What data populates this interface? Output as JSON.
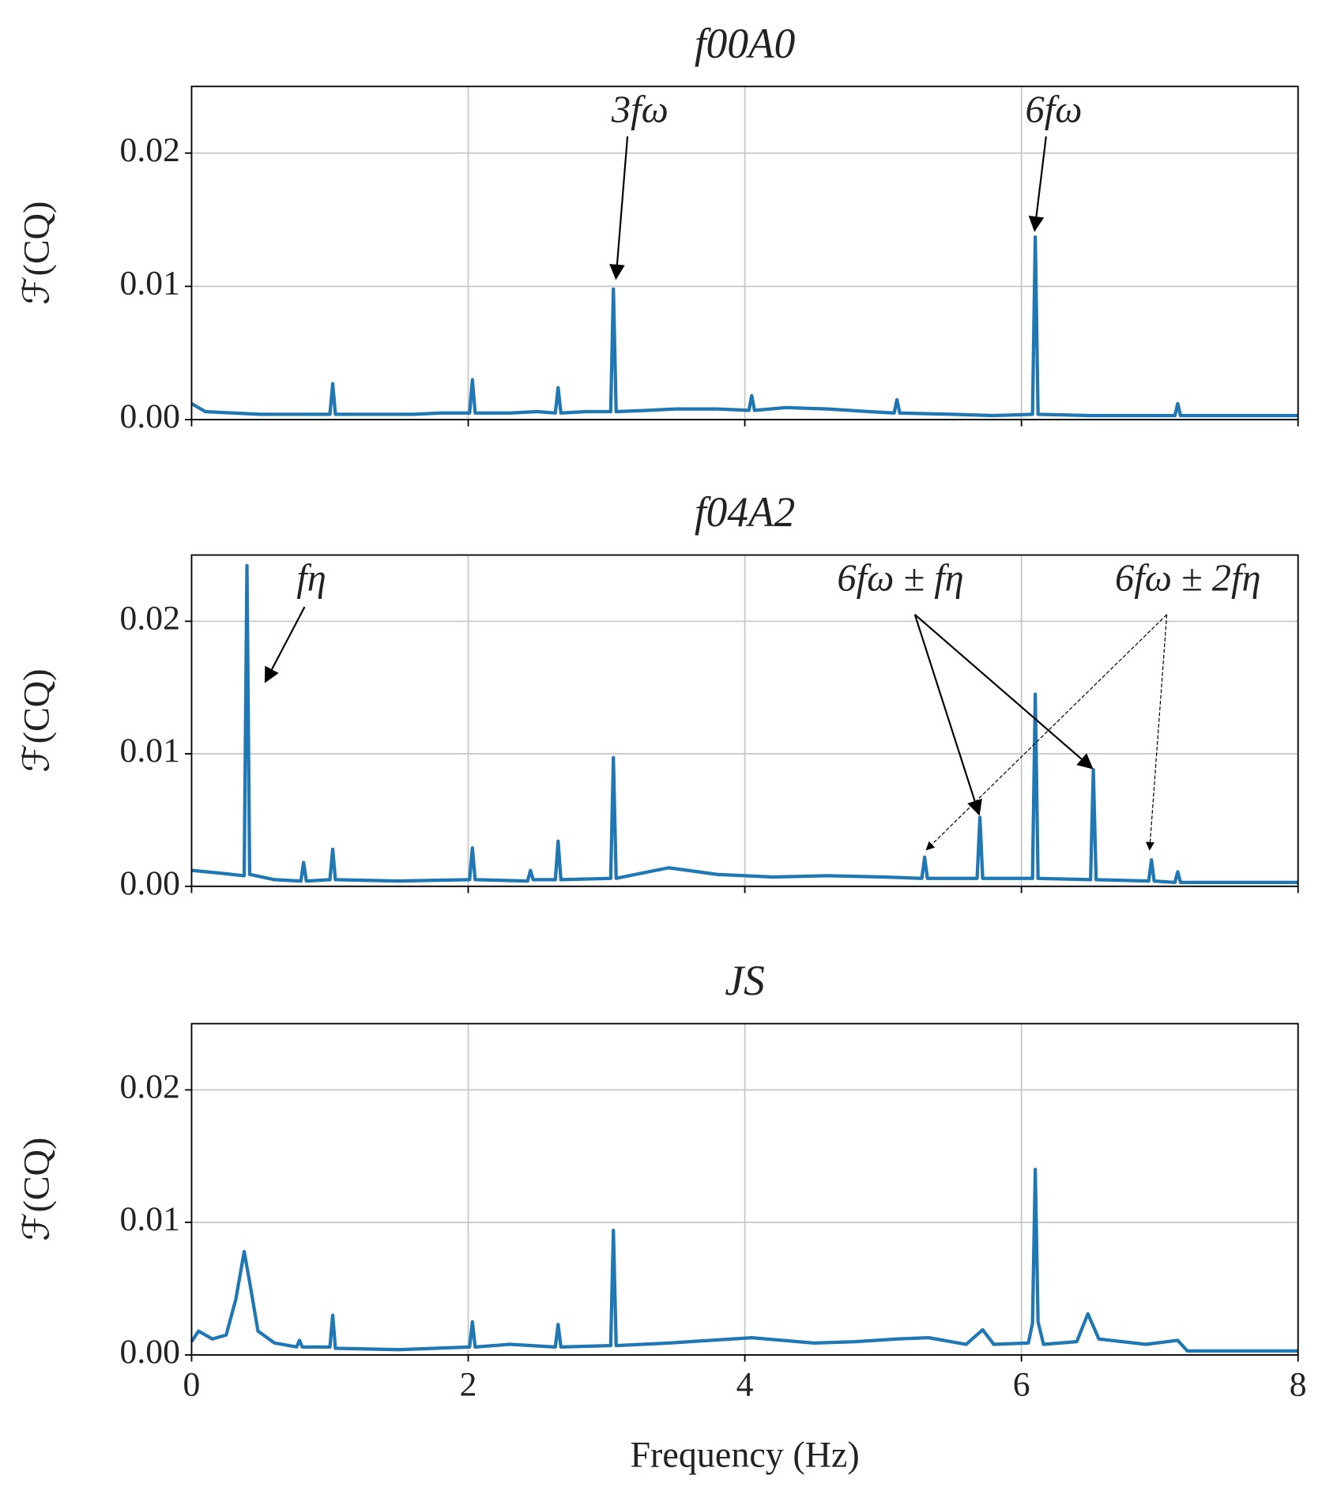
{
  "chart_data": [
    {
      "type": "line",
      "title": "f00A0",
      "ylabel": "ℱ(CQ)",
      "color": "#1f77b4",
      "grid": true,
      "xlim": [
        0,
        8
      ],
      "ylim": [
        0,
        0.025
      ],
      "yticks": [
        {
          "value": 0,
          "label": "0.00"
        },
        {
          "value": 0.01,
          "label": "0.01"
        },
        {
          "value": 0.02,
          "label": "0.02"
        }
      ],
      "annotations": [
        "3fω",
        "6fω"
      ],
      "x": [
        0,
        0.1,
        0.3,
        0.5,
        0.75,
        1.0,
        1.02,
        1.04,
        1.3,
        1.6,
        1.8,
        2.01,
        2.03,
        2.05,
        2.3,
        2.5,
        2.63,
        2.65,
        2.67,
        2.85,
        3.03,
        3.05,
        3.07,
        3.3,
        3.5,
        3.8,
        4.03,
        4.05,
        4.07,
        4.3,
        4.6,
        4.9,
        5.08,
        5.1,
        5.12,
        5.5,
        5.8,
        6.08,
        6.1,
        6.12,
        6.5,
        7.11,
        7.13,
        7.15,
        7.5,
        8
      ],
      "values": [
        0.0012,
        0.0006,
        0.0005,
        0.0004,
        0.0004,
        0.0004,
        0.0027,
        0.0004,
        0.0004,
        0.0004,
        0.0005,
        0.0005,
        0.003,
        0.0005,
        0.0005,
        0.0006,
        0.0005,
        0.0024,
        0.0005,
        0.0006,
        0.0006,
        0.0098,
        0.0006,
        0.0007,
        0.0008,
        0.0008,
        0.0007,
        0.0018,
        0.0007,
        0.0009,
        0.0008,
        0.0006,
        0.0005,
        0.0015,
        0.0005,
        0.0004,
        0.0003,
        0.0004,
        0.0137,
        0.0004,
        0.0003,
        0.0003,
        0.0012,
        0.0003,
        0.0003,
        0.0003
      ]
    },
    {
      "type": "line",
      "title": "f04A2",
      "ylabel": "ℱ(CQ)",
      "color": "#1f77b4",
      "grid": true,
      "xlim": [
        0,
        8
      ],
      "ylim": [
        0,
        0.025
      ],
      "yticks": [
        {
          "value": 0,
          "label": "0.00"
        },
        {
          "value": 0.01,
          "label": "0.01"
        },
        {
          "value": 0.02,
          "label": "0.02"
        }
      ],
      "annotations": [
        "fη",
        "6fω ± fη",
        "6fω ± 2fη"
      ],
      "x": [
        0,
        0.2,
        0.38,
        0.4,
        0.42,
        0.6,
        0.79,
        0.81,
        0.83,
        1.0,
        1.02,
        1.04,
        1.5,
        2.01,
        2.03,
        2.05,
        2.43,
        2.45,
        2.47,
        2.63,
        2.65,
        2.67,
        3.03,
        3.05,
        3.07,
        3.45,
        3.8,
        4.2,
        4.6,
        5.0,
        5.28,
        5.3,
        5.32,
        5.68,
        5.7,
        5.72,
        6.08,
        6.1,
        6.12,
        6.5,
        6.52,
        6.54,
        6.92,
        6.94,
        6.96,
        7.11,
        7.13,
        7.15,
        7.5,
        8
      ],
      "values": [
        0.0012,
        0.001,
        0.0008,
        0.0242,
        0.0009,
        0.0005,
        0.0004,
        0.0018,
        0.0004,
        0.0005,
        0.0028,
        0.0005,
        0.0004,
        0.0005,
        0.0029,
        0.0005,
        0.0004,
        0.0012,
        0.0005,
        0.0005,
        0.0034,
        0.0005,
        0.0006,
        0.0097,
        0.0006,
        0.0014,
        0.0009,
        0.0007,
        0.0008,
        0.0007,
        0.0006,
        0.0022,
        0.0006,
        0.0006,
        0.0052,
        0.0006,
        0.0006,
        0.0145,
        0.0006,
        0.0005,
        0.0088,
        0.0005,
        0.0004,
        0.002,
        0.0004,
        0.0003,
        0.0011,
        0.0003,
        0.0003,
        0.0003
      ]
    },
    {
      "type": "line",
      "title": "JS",
      "ylabel": "ℱ(CQ)",
      "xlabel": "Frequency (Hz)",
      "color": "#1f77b4",
      "grid": true,
      "xlim": [
        0,
        8
      ],
      "ylim": [
        0,
        0.025
      ],
      "xticks": [
        0,
        2,
        4,
        6,
        8
      ],
      "yticks": [
        {
          "value": 0,
          "label": "0.00"
        },
        {
          "value": 0.01,
          "label": "0.01"
        },
        {
          "value": 0.02,
          "label": "0.02"
        }
      ],
      "x": [
        0,
        0.05,
        0.15,
        0.25,
        0.32,
        0.38,
        0.42,
        0.48,
        0.6,
        0.76,
        0.78,
        0.8,
        1.0,
        1.02,
        1.04,
        1.5,
        2.01,
        2.03,
        2.05,
        2.3,
        2.63,
        2.65,
        2.67,
        3.03,
        3.05,
        3.07,
        3.45,
        4.05,
        4.5,
        4.8,
        5.1,
        5.33,
        5.6,
        5.72,
        5.8,
        6.05,
        6.08,
        6.1,
        6.12,
        6.16,
        6.4,
        6.48,
        6.56,
        6.9,
        7.13,
        7.2,
        8
      ],
      "values": [
        0.001,
        0.0018,
        0.0012,
        0.0015,
        0.0042,
        0.0078,
        0.0055,
        0.0018,
        0.0009,
        0.0006,
        0.0011,
        0.0006,
        0.0006,
        0.003,
        0.0005,
        0.0004,
        0.0006,
        0.0025,
        0.0006,
        0.0008,
        0.0006,
        0.0023,
        0.0006,
        0.0007,
        0.0094,
        0.0007,
        0.0009,
        0.0013,
        0.0009,
        0.001,
        0.0012,
        0.0013,
        0.0008,
        0.0019,
        0.0008,
        0.0009,
        0.0024,
        0.014,
        0.0025,
        0.0008,
        0.001,
        0.0031,
        0.0012,
        0.0008,
        0.0011,
        0.0003,
        0.0003
      ]
    }
  ]
}
